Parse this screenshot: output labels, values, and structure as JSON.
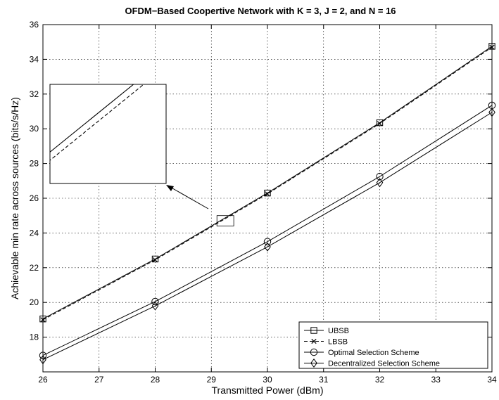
{
  "chart_data": {
    "type": "line",
    "title": "OFDM−Based Coopertive Network with K = 3, J = 2, and N = 16",
    "xlabel": "Transmitted Power (dBm)",
    "ylabel": "Achievable min rate across sources (bits/s/Hz)",
    "xlim": [
      26,
      34
    ],
    "ylim": [
      16,
      36
    ],
    "xticks": [
      "26",
      "27",
      "28",
      "29",
      "30",
      "31",
      "32",
      "33",
      "34"
    ],
    "yticks": [
      "18",
      "20",
      "22",
      "24",
      "26",
      "28",
      "30",
      "32",
      "34",
      "36"
    ],
    "grid": true,
    "legend_position": "bottom-right",
    "x": [
      26,
      28,
      30,
      32,
      34
    ],
    "series": [
      {
        "name": "UBSB",
        "marker": "square",
        "dash": "solid",
        "values": [
          19.05,
          22.5,
          26.3,
          30.35,
          34.75
        ]
      },
      {
        "name": "LBSB",
        "marker": "x",
        "dash": "dashed",
        "values": [
          19.0,
          22.45,
          26.25,
          30.3,
          34.7
        ]
      },
      {
        "name": "Optimal Selection Scheme",
        "marker": "circle",
        "dash": "solid",
        "values": [
          16.95,
          20.05,
          23.5,
          27.25,
          31.35
        ]
      },
      {
        "name": "Decentralized Selection Scheme",
        "marker": "diamond",
        "dash": "solid",
        "values": [
          16.7,
          19.8,
          23.2,
          26.9,
          30.95
        ]
      }
    ],
    "inset": {
      "xlim": [
        29.1,
        29.4
      ],
      "ylim": [
        24.4,
        25.0
      ]
    }
  }
}
